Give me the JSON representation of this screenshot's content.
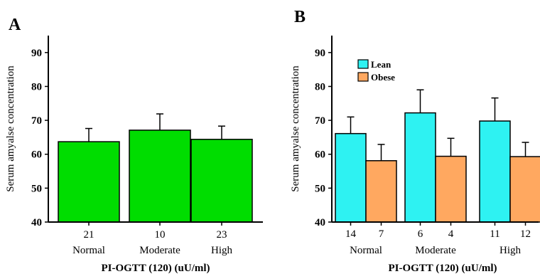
{
  "panels": [
    {
      "letter": "A"
    },
    {
      "letter": "B"
    }
  ],
  "chart_data": [
    {
      "type": "bar",
      "panel": "A",
      "ylabel": "Serum amyalse concentration",
      "xlabel": "PI-OGTT (120) (uU/ml)",
      "ylim": [
        40,
        95
      ],
      "yticks": [
        40,
        50,
        60,
        70,
        80,
        90
      ],
      "categories": [
        "Normal",
        "Moderate",
        "High"
      ],
      "counts": [
        [
          "21"
        ],
        [
          "10"
        ],
        [
          "23"
        ]
      ],
      "series": [
        {
          "color": "#00dd00",
          "values": [
            63.7,
            67.1,
            64.4
          ],
          "errors": [
            3.9,
            4.8,
            3.9
          ]
        }
      ]
    },
    {
      "type": "bar",
      "panel": "B",
      "ylabel": "Serum amyalse concentration",
      "xlabel": "PI-OGTT (120) (uU/ml)",
      "ylim": [
        40,
        95
      ],
      "yticks": [
        40,
        50,
        60,
        70,
        80,
        90
      ],
      "categories": [
        "Normal",
        "Moderate",
        "High"
      ],
      "counts": [
        [
          "14",
          "7"
        ],
        [
          "6",
          "4"
        ],
        [
          "11",
          "12"
        ]
      ],
      "legend_position": "top-left",
      "series": [
        {
          "name": "Lean",
          "color": "#2ef2f2",
          "values": [
            66.1,
            72.2,
            69.8
          ],
          "errors": [
            4.9,
            6.8,
            6.8
          ]
        },
        {
          "name": "Obese",
          "color": "#ffa860",
          "values": [
            58.1,
            59.4,
            59.3
          ],
          "errors": [
            4.8,
            5.3,
            4.2
          ]
        }
      ]
    }
  ]
}
